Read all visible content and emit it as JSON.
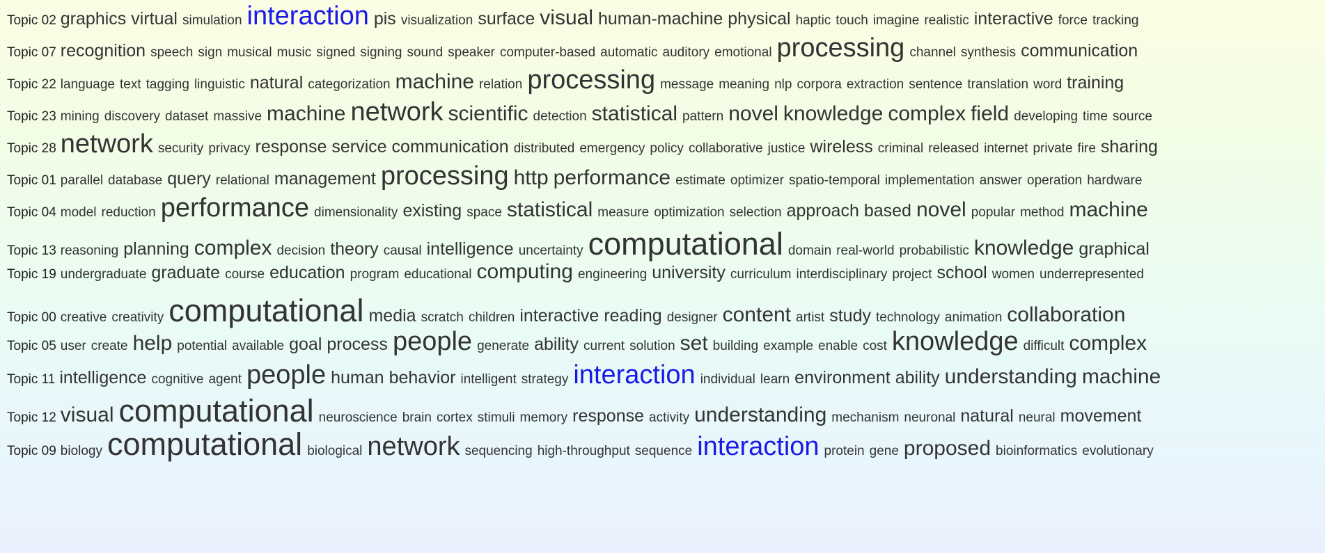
{
  "highlight_color": "#1a1ae6",
  "word_color": "#333333",
  "topics": [
    {
      "label": "Topic 02",
      "words": [
        {
          "t": "graphics",
          "w": 3
        },
        {
          "t": "virtual",
          "w": 3
        },
        {
          "t": "simulation",
          "w": 1
        },
        {
          "t": "interaction",
          "w": 5,
          "h": true
        },
        {
          "t": "pis",
          "w": 3
        },
        {
          "t": "visualization",
          "w": 1
        },
        {
          "t": "surface",
          "w": 3
        },
        {
          "t": "visual",
          "w": 4
        },
        {
          "t": "human-machine",
          "w": 3
        },
        {
          "t": "physical",
          "w": 3
        },
        {
          "t": "haptic",
          "w": 1
        },
        {
          "t": "touch",
          "w": 1
        },
        {
          "t": "imagine",
          "w": 1
        },
        {
          "t": "realistic",
          "w": 1
        },
        {
          "t": "interactive",
          "w": 3
        },
        {
          "t": "force",
          "w": 1
        },
        {
          "t": "tracking",
          "w": 1
        }
      ]
    },
    {
      "label": "Topic 07",
      "words": [
        {
          "t": "recognition",
          "w": 3
        },
        {
          "t": "speech",
          "w": 1
        },
        {
          "t": "sign",
          "w": 1
        },
        {
          "t": "musical",
          "w": 1
        },
        {
          "t": "music",
          "w": 1
        },
        {
          "t": "signed",
          "w": 1
        },
        {
          "t": "signing",
          "w": 1
        },
        {
          "t": "sound",
          "w": 1
        },
        {
          "t": "speaker",
          "w": 1
        },
        {
          "t": "computer-based",
          "w": 1
        },
        {
          "t": "automatic",
          "w": 1
        },
        {
          "t": "auditory",
          "w": 1
        },
        {
          "t": "emotional",
          "w": 1
        },
        {
          "t": "processing",
          "w": 5
        },
        {
          "t": "channel",
          "w": 1
        },
        {
          "t": "synthesis",
          "w": 1
        },
        {
          "t": "communication",
          "w": 3
        }
      ]
    },
    {
      "label": "Topic 22",
      "words": [
        {
          "t": "language",
          "w": 1
        },
        {
          "t": "text",
          "w": 1
        },
        {
          "t": "tagging",
          "w": 1
        },
        {
          "t": "linguistic",
          "w": 1
        },
        {
          "t": "natural",
          "w": 3
        },
        {
          "t": "categorization",
          "w": 1
        },
        {
          "t": "machine",
          "w": 4
        },
        {
          "t": "relation",
          "w": 1
        },
        {
          "t": "processing",
          "w": 5
        },
        {
          "t": "message",
          "w": 1
        },
        {
          "t": "meaning",
          "w": 1
        },
        {
          "t": "nlp",
          "w": 1
        },
        {
          "t": "corpora",
          "w": 1
        },
        {
          "t": "extraction",
          "w": 1
        },
        {
          "t": "sentence",
          "w": 1
        },
        {
          "t": "translation",
          "w": 1
        },
        {
          "t": "word",
          "w": 1
        },
        {
          "t": "training",
          "w": 3
        }
      ]
    },
    {
      "label": "Topic 23",
      "words": [
        {
          "t": "mining",
          "w": 1
        },
        {
          "t": "discovery",
          "w": 1
        },
        {
          "t": "dataset",
          "w": 1
        },
        {
          "t": "massive",
          "w": 1
        },
        {
          "t": "machine",
          "w": 4
        },
        {
          "t": "network",
          "w": 5
        },
        {
          "t": "scientific",
          "w": 4
        },
        {
          "t": "detection",
          "w": 1
        },
        {
          "t": "statistical",
          "w": 4
        },
        {
          "t": "pattern",
          "w": 1
        },
        {
          "t": "novel",
          "w": 4
        },
        {
          "t": "knowledge",
          "w": 4
        },
        {
          "t": "complex",
          "w": 4
        },
        {
          "t": "field",
          "w": 4
        },
        {
          "t": "developing",
          "w": 1
        },
        {
          "t": "time",
          "w": 1
        },
        {
          "t": "source",
          "w": 1
        }
      ]
    },
    {
      "label": "Topic 28",
      "words": [
        {
          "t": "network",
          "w": 5
        },
        {
          "t": "security",
          "w": 1
        },
        {
          "t": "privacy",
          "w": 1
        },
        {
          "t": "response",
          "w": 3
        },
        {
          "t": "service",
          "w": 3
        },
        {
          "t": "communication",
          "w": 3
        },
        {
          "t": "distributed",
          "w": 1
        },
        {
          "t": "emergency",
          "w": 1
        },
        {
          "t": "policy",
          "w": 1
        },
        {
          "t": "collaborative",
          "w": 1
        },
        {
          "t": "justice",
          "w": 1
        },
        {
          "t": "wireless",
          "w": 3
        },
        {
          "t": "criminal",
          "w": 1
        },
        {
          "t": "released",
          "w": 1
        },
        {
          "t": "internet",
          "w": 1
        },
        {
          "t": "private",
          "w": 1
        },
        {
          "t": "fire",
          "w": 1
        },
        {
          "t": "sharing",
          "w": 3
        }
      ]
    },
    {
      "label": "Topic 01",
      "words": [
        {
          "t": "parallel",
          "w": 1
        },
        {
          "t": "database",
          "w": 1
        },
        {
          "t": "query",
          "w": 3
        },
        {
          "t": "relational",
          "w": 1
        },
        {
          "t": "management",
          "w": 3
        },
        {
          "t": "processing",
          "w": 5
        },
        {
          "t": "http",
          "w": 4
        },
        {
          "t": "performance",
          "w": 4
        },
        {
          "t": "estimate",
          "w": 1
        },
        {
          "t": "optimizer",
          "w": 1
        },
        {
          "t": "spatio-temporal",
          "w": 1
        },
        {
          "t": "implementation",
          "w": 1
        },
        {
          "t": "answer",
          "w": 1
        },
        {
          "t": "operation",
          "w": 1
        },
        {
          "t": "hardware",
          "w": 1
        }
      ]
    },
    {
      "label": "Topic 04",
      "words": [
        {
          "t": "model",
          "w": 1
        },
        {
          "t": "reduction",
          "w": 1
        },
        {
          "t": "performance",
          "w": 5
        },
        {
          "t": "dimensionality",
          "w": 1
        },
        {
          "t": "existing",
          "w": 3
        },
        {
          "t": "space",
          "w": 1
        },
        {
          "t": "statistical",
          "w": 4
        },
        {
          "t": "measure",
          "w": 1
        },
        {
          "t": "optimization",
          "w": 1
        },
        {
          "t": "selection",
          "w": 1
        },
        {
          "t": "approach",
          "w": 3
        },
        {
          "t": "based",
          "w": 3
        },
        {
          "t": "novel",
          "w": 4
        },
        {
          "t": "popular",
          "w": 1
        },
        {
          "t": "method",
          "w": 1
        },
        {
          "t": "machine",
          "w": 4
        }
      ]
    },
    {
      "label": "Topic 13",
      "words": [
        {
          "t": "reasoning",
          "w": 1
        },
        {
          "t": "planning",
          "w": 3
        },
        {
          "t": "complex",
          "w": 4
        },
        {
          "t": "decision",
          "w": 1
        },
        {
          "t": "theory",
          "w": 3
        },
        {
          "t": "causal",
          "w": 1
        },
        {
          "t": "intelligence",
          "w": 3
        },
        {
          "t": "uncertainty",
          "w": 1
        },
        {
          "t": "computational",
          "w": 6
        },
        {
          "t": "domain",
          "w": 1
        },
        {
          "t": "real-world",
          "w": 1
        },
        {
          "t": "probabilistic",
          "w": 1
        },
        {
          "t": "knowledge",
          "w": 4
        },
        {
          "t": "graphical",
          "w": 3
        }
      ]
    },
    {
      "label": "Topic 19",
      "words": [
        {
          "t": "undergraduate",
          "w": 1
        },
        {
          "t": "graduate",
          "w": 3
        },
        {
          "t": "course",
          "w": 1
        },
        {
          "t": "education",
          "w": 3
        },
        {
          "t": "program",
          "w": 1
        },
        {
          "t": "educational",
          "w": 1
        },
        {
          "t": "computing",
          "w": 4
        },
        {
          "t": "engineering",
          "w": 1
        },
        {
          "t": "university",
          "w": 3
        },
        {
          "t": "curriculum",
          "w": 1
        },
        {
          "t": "interdisciplinary",
          "w": 1
        },
        {
          "t": "project",
          "w": 1
        },
        {
          "t": "school",
          "w": 3
        },
        {
          "t": "women",
          "w": 1
        },
        {
          "t": "underrepresented",
          "w": 1
        }
      ]
    },
    {
      "label": "Topic 00",
      "words": [
        {
          "t": "creative",
          "w": 1
        },
        {
          "t": "creativity",
          "w": 1
        },
        {
          "t": "computational",
          "w": 6
        },
        {
          "t": "media",
          "w": 3
        },
        {
          "t": "scratch",
          "w": 1
        },
        {
          "t": "children",
          "w": 1
        },
        {
          "t": "interactive",
          "w": 3
        },
        {
          "t": "reading",
          "w": 3
        },
        {
          "t": "designer",
          "w": 1
        },
        {
          "t": "content",
          "w": 4
        },
        {
          "t": "artist",
          "w": 1
        },
        {
          "t": "study",
          "w": 3
        },
        {
          "t": "technology",
          "w": 1
        },
        {
          "t": "animation",
          "w": 1
        },
        {
          "t": "collaboration",
          "w": 4
        }
      ]
    },
    {
      "label": "Topic 05",
      "words": [
        {
          "t": "user",
          "w": 1
        },
        {
          "t": "create",
          "w": 1
        },
        {
          "t": "help",
          "w": 4
        },
        {
          "t": "potential",
          "w": 1
        },
        {
          "t": "available",
          "w": 1
        },
        {
          "t": "goal",
          "w": 3
        },
        {
          "t": "process",
          "w": 3
        },
        {
          "t": "people",
          "w": 5
        },
        {
          "t": "generate",
          "w": 1
        },
        {
          "t": "ability",
          "w": 3
        },
        {
          "t": "current",
          "w": 1
        },
        {
          "t": "solution",
          "w": 1
        },
        {
          "t": "set",
          "w": 4
        },
        {
          "t": "building",
          "w": 1
        },
        {
          "t": "example",
          "w": 1
        },
        {
          "t": "enable",
          "w": 1
        },
        {
          "t": "cost",
          "w": 1
        },
        {
          "t": "knowledge",
          "w": 5
        },
        {
          "t": "difficult",
          "w": 1
        },
        {
          "t": "complex",
          "w": 4
        }
      ]
    },
    {
      "label": "Topic 11",
      "words": [
        {
          "t": "intelligence",
          "w": 3
        },
        {
          "t": "cognitive",
          "w": 1
        },
        {
          "t": "agent",
          "w": 1
        },
        {
          "t": "people",
          "w": 5
        },
        {
          "t": "human",
          "w": 3
        },
        {
          "t": "behavior",
          "w": 3
        },
        {
          "t": "intelligent",
          "w": 1
        },
        {
          "t": "strategy",
          "w": 1
        },
        {
          "t": "interaction",
          "w": 5,
          "h": true
        },
        {
          "t": "individual",
          "w": 1
        },
        {
          "t": "learn",
          "w": 1
        },
        {
          "t": "environment",
          "w": 3
        },
        {
          "t": "ability",
          "w": 3
        },
        {
          "t": "understanding",
          "w": 4
        },
        {
          "t": "machine",
          "w": 4
        }
      ]
    },
    {
      "label": "Topic 12",
      "words": [
        {
          "t": "visual",
          "w": 4
        },
        {
          "t": "computational",
          "w": 6
        },
        {
          "t": "neuroscience",
          "w": 1
        },
        {
          "t": "brain",
          "w": 1
        },
        {
          "t": "cortex",
          "w": 1
        },
        {
          "t": "stimuli",
          "w": 1
        },
        {
          "t": "memory",
          "w": 1
        },
        {
          "t": "response",
          "w": 3
        },
        {
          "t": "activity",
          "w": 1
        },
        {
          "t": "understanding",
          "w": 4
        },
        {
          "t": "mechanism",
          "w": 1
        },
        {
          "t": "neuronal",
          "w": 1
        },
        {
          "t": "natural",
          "w": 3
        },
        {
          "t": "neural",
          "w": 1
        },
        {
          "t": "movement",
          "w": 3
        }
      ]
    },
    {
      "label": "Topic 09",
      "words": [
        {
          "t": "biology",
          "w": 1
        },
        {
          "t": "computational",
          "w": 6
        },
        {
          "t": "biological",
          "w": 1
        },
        {
          "t": "network",
          "w": 5
        },
        {
          "t": "sequencing",
          "w": 1
        },
        {
          "t": "high-throughput",
          "w": 1
        },
        {
          "t": "sequence",
          "w": 1
        },
        {
          "t": "interaction",
          "w": 5,
          "h": true
        },
        {
          "t": "protein",
          "w": 1
        },
        {
          "t": "gene",
          "w": 1
        },
        {
          "t": "proposed",
          "w": 4
        },
        {
          "t": "bioinformatics",
          "w": 1
        },
        {
          "t": "evolutionary",
          "w": 1
        }
      ]
    }
  ]
}
